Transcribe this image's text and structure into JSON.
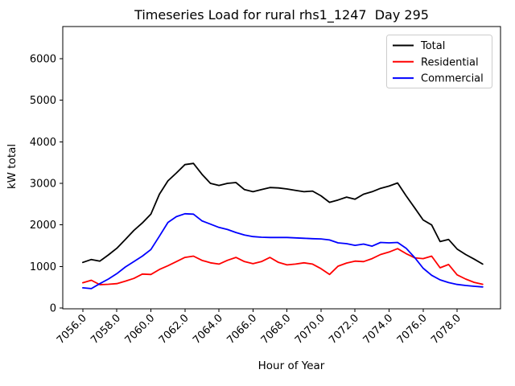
{
  "chart_data": {
    "type": "line",
    "title": "Timeseries Load for rural rhs1_1247  Day 295",
    "xlabel": "Hour of Year",
    "ylabel": "kW total",
    "grid": false,
    "legend_position": "upper right",
    "legend_entries": [
      "Total",
      "Residential",
      "Commercial"
    ],
    "xlim": [
      7054.82,
      7080.55
    ],
    "ylim": [
      0,
      6770
    ],
    "x_tick_values": [
      7056,
      7058,
      7060,
      7062,
      7064,
      7066,
      7068,
      7070,
      7072,
      7074,
      7076,
      7078
    ],
    "x_tick_labels": [
      "7056.0",
      "7058.0",
      "7060.0",
      "7062.0",
      "7064.0",
      "7066.0",
      "7068.0",
      "7070.0",
      "7072.0",
      "7074.0",
      "7076.0",
      "7078.0"
    ],
    "y_tick_values": [
      0,
      1000,
      2000,
      3000,
      4000,
      5000,
      6000
    ],
    "y_tick_labels": [
      "0",
      "1000",
      "2000",
      "3000",
      "4000",
      "5000",
      "6000"
    ],
    "x": [
      7056.0,
      7056.5,
      7057.0,
      7057.5,
      7058.0,
      7058.5,
      7059.0,
      7059.5,
      7060.0,
      7060.5,
      7061.0,
      7061.5,
      7062.0,
      7062.5,
      7063.0,
      7063.5,
      7064.0,
      7064.5,
      7065.0,
      7065.5,
      7066.0,
      7066.5,
      7067.0,
      7067.5,
      7068.0,
      7068.5,
      7069.0,
      7069.5,
      7070.0,
      7070.5,
      7071.0,
      7071.5,
      7072.0,
      7072.5,
      7073.0,
      7073.5,
      7074.0,
      7074.5,
      7075.0,
      7075.5,
      7076.0,
      7076.5,
      7077.0,
      7077.5,
      7078.0,
      7078.5,
      7079.0,
      7079.5
    ],
    "series": [
      {
        "name": "Total",
        "color": "#000000",
        "values": [
          1100,
          1170,
          1130,
          1280,
          1440,
          1650,
          1870,
          2050,
          2260,
          2740,
          3060,
          3250,
          3450,
          3480,
          3220,
          3000,
          2950,
          3000,
          3020,
          2850,
          2800,
          2850,
          2900,
          2890,
          2865,
          2830,
          2800,
          2815,
          2700,
          2545,
          2600,
          2670,
          2620,
          2740,
          2800,
          2880,
          2935,
          3010,
          2700,
          2415,
          2120,
          2000,
          1600,
          1650,
          1420,
          1290,
          1180,
          1060
        ]
      },
      {
        "name": "Residential",
        "color": "#ff0000",
        "values": [
          610,
          670,
          565,
          575,
          590,
          650,
          715,
          820,
          810,
          930,
          1020,
          1120,
          1220,
          1250,
          1150,
          1090,
          1060,
          1150,
          1220,
          1120,
          1070,
          1120,
          1220,
          1100,
          1040,
          1060,
          1090,
          1060,
          950,
          810,
          1010,
          1085,
          1130,
          1120,
          1190,
          1290,
          1350,
          1430,
          1310,
          1210,
          1190,
          1250,
          970,
          1050,
          800,
          700,
          620,
          575
        ]
      },
      {
        "name": "Commercial",
        "color": "#0000ff",
        "values": [
          490,
          470,
          590,
          700,
          830,
          990,
          1120,
          1250,
          1410,
          1730,
          2060,
          2200,
          2270,
          2260,
          2100,
          2020,
          1940,
          1890,
          1820,
          1760,
          1720,
          1705,
          1700,
          1700,
          1700,
          1690,
          1680,
          1670,
          1665,
          1640,
          1570,
          1550,
          1510,
          1540,
          1490,
          1580,
          1570,
          1580,
          1440,
          1220,
          960,
          790,
          680,
          615,
          570,
          545,
          525,
          510
        ]
      }
    ]
  }
}
